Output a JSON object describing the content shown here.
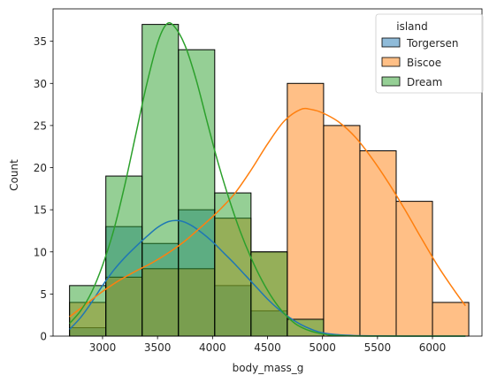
{
  "chart_data": {
    "type": "histogram",
    "xlabel": "body_mass_g",
    "ylabel": "Count",
    "xlim": [
      2550,
      6450
    ],
    "ylim": [
      0,
      38.85
    ],
    "bin_edges": [
      2700,
      3030,
      3360,
      3690,
      4020,
      4350,
      4680,
      5010,
      5340,
      5670,
      6000,
      6330
    ],
    "x_ticks": [
      3000,
      3500,
      4000,
      4500,
      5000,
      5500,
      6000
    ],
    "y_ticks": [
      0,
      5,
      10,
      15,
      20,
      25,
      30,
      35
    ],
    "legend_title": "island",
    "legend_position": "top-right",
    "series": [
      {
        "name": "Torgersen",
        "color": "#1f77b4",
        "counts": [
          1,
          13,
          11,
          15,
          6,
          3,
          0,
          0,
          0,
          0,
          0
        ],
        "kde_x": [
          2700,
          2800,
          2900,
          3000,
          3100,
          3200,
          3300,
          3400,
          3500,
          3600,
          3700,
          3800,
          3900,
          4000,
          4100,
          4200,
          4300,
          4400,
          4500,
          4600,
          4700,
          4800,
          4900,
          5000,
          5200,
          5500,
          6000,
          6300
        ],
        "kde_y": [
          0.8,
          2.2,
          4.0,
          6.0,
          7.8,
          9.3,
          10.6,
          11.8,
          12.9,
          13.6,
          13.7,
          13.2,
          12.3,
          11.2,
          9.9,
          8.6,
          7.2,
          5.8,
          4.4,
          3.2,
          2.2,
          1.4,
          0.8,
          0.4,
          0.12,
          0.02,
          0,
          0
        ]
      },
      {
        "name": "Biscoe",
        "color": "#ff7f0e",
        "counts": [
          4,
          7,
          8,
          8,
          14,
          10,
          30,
          25,
          22,
          16,
          4
        ],
        "kde_x": [
          2700,
          2850,
          3000,
          3150,
          3300,
          3450,
          3600,
          3750,
          3900,
          4050,
          4200,
          4350,
          4500,
          4650,
          4800,
          4900,
          5000,
          5150,
          5300,
          5450,
          5600,
          5750,
          5900,
          6050,
          6200,
          6300
        ],
        "kde_y": [
          2.3,
          3.8,
          5.3,
          6.6,
          7.7,
          8.7,
          9.9,
          11.3,
          13.0,
          14.8,
          16.9,
          19.7,
          22.8,
          25.5,
          26.9,
          26.9,
          26.5,
          25.4,
          23.6,
          21.1,
          18.2,
          15.0,
          11.6,
          8.3,
          5.4,
          3.6
        ]
      },
      {
        "name": "Dream",
        "color": "#2ca02c",
        "counts": [
          6,
          19,
          37,
          34,
          17,
          10,
          2,
          0,
          0,
          0,
          0
        ],
        "kde_x": [
          2700,
          2800,
          2900,
          3000,
          3100,
          3200,
          3300,
          3400,
          3500,
          3580,
          3650,
          3750,
          3850,
          3950,
          4050,
          4150,
          4250,
          4350,
          4450,
          4550,
          4650,
          4750,
          4850,
          4950,
          5050,
          5200,
          5500,
          6000,
          6300
        ],
        "kde_y": [
          1.5,
          3.0,
          5.2,
          8.4,
          12.5,
          17.8,
          23.8,
          29.8,
          34.8,
          37.0,
          36.8,
          34.5,
          30.5,
          25.5,
          20.6,
          16.3,
          12.5,
          9.3,
          6.6,
          4.4,
          2.7,
          1.5,
          0.8,
          0.4,
          0.15,
          0.04,
          0,
          0,
          0
        ]
      }
    ]
  }
}
